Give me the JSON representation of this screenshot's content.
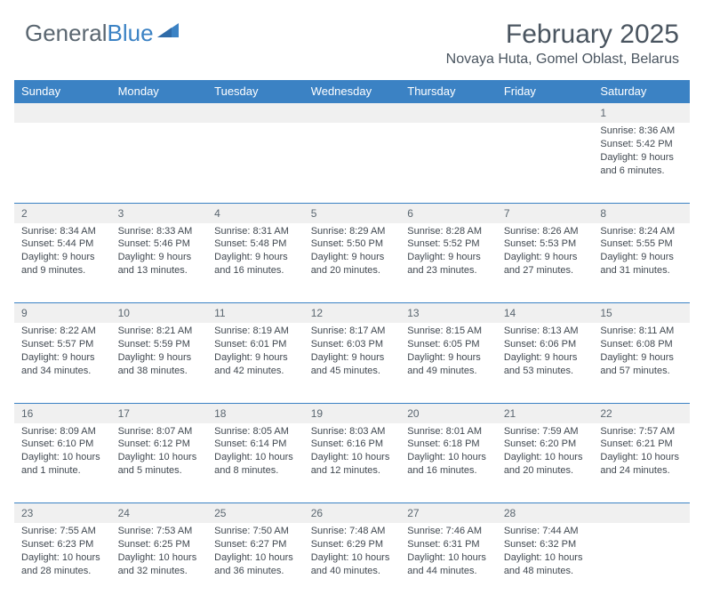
{
  "logo": {
    "part1": "General",
    "part2": "Blue"
  },
  "title": "February 2025",
  "location": "Novaya Huta, Gomel Oblast, Belarus",
  "colors": {
    "header_bg": "#3b82c4",
    "header_text": "#ffffff",
    "daynum_bg": "#f0f0f0",
    "cell_border": "#3b82c4",
    "body_text": "#404850",
    "logo_grey": "#5a6670",
    "logo_blue": "#3b82c4"
  },
  "weekdays": [
    "Sunday",
    "Monday",
    "Tuesday",
    "Wednesday",
    "Thursday",
    "Friday",
    "Saturday"
  ],
  "weeks": [
    [
      null,
      null,
      null,
      null,
      null,
      null,
      {
        "n": "1",
        "sunrise": "8:36 AM",
        "sunset": "5:42 PM",
        "daylight": "9 hours and 6 minutes."
      }
    ],
    [
      {
        "n": "2",
        "sunrise": "8:34 AM",
        "sunset": "5:44 PM",
        "daylight": "9 hours and 9 minutes."
      },
      {
        "n": "3",
        "sunrise": "8:33 AM",
        "sunset": "5:46 PM",
        "daylight": "9 hours and 13 minutes."
      },
      {
        "n": "4",
        "sunrise": "8:31 AM",
        "sunset": "5:48 PM",
        "daylight": "9 hours and 16 minutes."
      },
      {
        "n": "5",
        "sunrise": "8:29 AM",
        "sunset": "5:50 PM",
        "daylight": "9 hours and 20 minutes."
      },
      {
        "n": "6",
        "sunrise": "8:28 AM",
        "sunset": "5:52 PM",
        "daylight": "9 hours and 23 minutes."
      },
      {
        "n": "7",
        "sunrise": "8:26 AM",
        "sunset": "5:53 PM",
        "daylight": "9 hours and 27 minutes."
      },
      {
        "n": "8",
        "sunrise": "8:24 AM",
        "sunset": "5:55 PM",
        "daylight": "9 hours and 31 minutes."
      }
    ],
    [
      {
        "n": "9",
        "sunrise": "8:22 AM",
        "sunset": "5:57 PM",
        "daylight": "9 hours and 34 minutes."
      },
      {
        "n": "10",
        "sunrise": "8:21 AM",
        "sunset": "5:59 PM",
        "daylight": "9 hours and 38 minutes."
      },
      {
        "n": "11",
        "sunrise": "8:19 AM",
        "sunset": "6:01 PM",
        "daylight": "9 hours and 42 minutes."
      },
      {
        "n": "12",
        "sunrise": "8:17 AM",
        "sunset": "6:03 PM",
        "daylight": "9 hours and 45 minutes."
      },
      {
        "n": "13",
        "sunrise": "8:15 AM",
        "sunset": "6:05 PM",
        "daylight": "9 hours and 49 minutes."
      },
      {
        "n": "14",
        "sunrise": "8:13 AM",
        "sunset": "6:06 PM",
        "daylight": "9 hours and 53 minutes."
      },
      {
        "n": "15",
        "sunrise": "8:11 AM",
        "sunset": "6:08 PM",
        "daylight": "9 hours and 57 minutes."
      }
    ],
    [
      {
        "n": "16",
        "sunrise": "8:09 AM",
        "sunset": "6:10 PM",
        "daylight": "10 hours and 1 minute."
      },
      {
        "n": "17",
        "sunrise": "8:07 AM",
        "sunset": "6:12 PM",
        "daylight": "10 hours and 5 minutes."
      },
      {
        "n": "18",
        "sunrise": "8:05 AM",
        "sunset": "6:14 PM",
        "daylight": "10 hours and 8 minutes."
      },
      {
        "n": "19",
        "sunrise": "8:03 AM",
        "sunset": "6:16 PM",
        "daylight": "10 hours and 12 minutes."
      },
      {
        "n": "20",
        "sunrise": "8:01 AM",
        "sunset": "6:18 PM",
        "daylight": "10 hours and 16 minutes."
      },
      {
        "n": "21",
        "sunrise": "7:59 AM",
        "sunset": "6:20 PM",
        "daylight": "10 hours and 20 minutes."
      },
      {
        "n": "22",
        "sunrise": "7:57 AM",
        "sunset": "6:21 PM",
        "daylight": "10 hours and 24 minutes."
      }
    ],
    [
      {
        "n": "23",
        "sunrise": "7:55 AM",
        "sunset": "6:23 PM",
        "daylight": "10 hours and 28 minutes."
      },
      {
        "n": "24",
        "sunrise": "7:53 AM",
        "sunset": "6:25 PM",
        "daylight": "10 hours and 32 minutes."
      },
      {
        "n": "25",
        "sunrise": "7:50 AM",
        "sunset": "6:27 PM",
        "daylight": "10 hours and 36 minutes."
      },
      {
        "n": "26",
        "sunrise": "7:48 AM",
        "sunset": "6:29 PM",
        "daylight": "10 hours and 40 minutes."
      },
      {
        "n": "27",
        "sunrise": "7:46 AM",
        "sunset": "6:31 PM",
        "daylight": "10 hours and 44 minutes."
      },
      {
        "n": "28",
        "sunrise": "7:44 AM",
        "sunset": "6:32 PM",
        "daylight": "10 hours and 48 minutes."
      },
      null
    ]
  ],
  "labels": {
    "sunrise": "Sunrise:",
    "sunset": "Sunset:",
    "daylight": "Daylight:"
  }
}
